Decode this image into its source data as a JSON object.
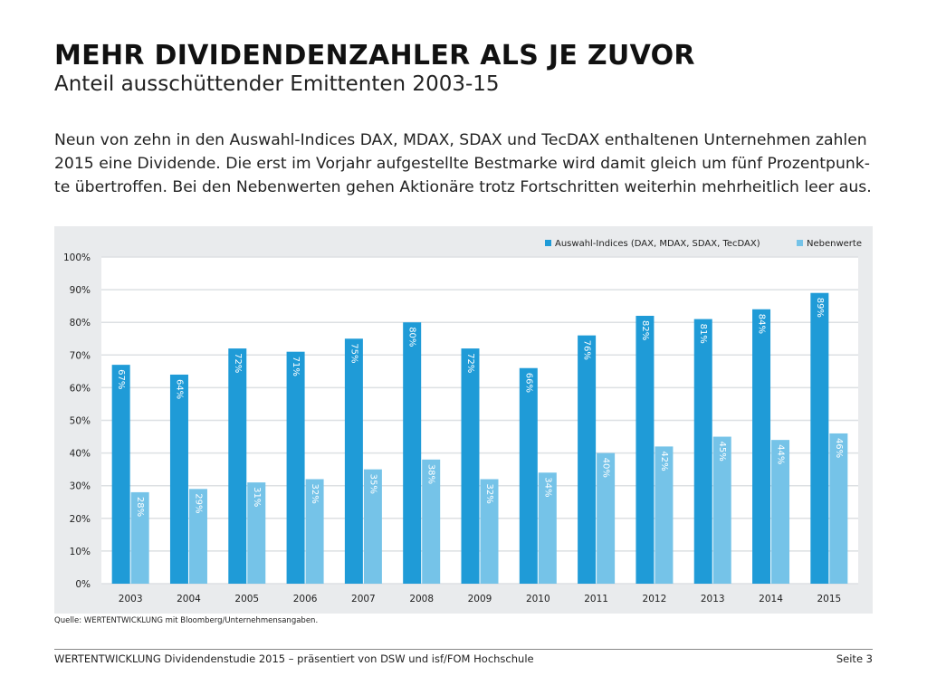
{
  "header": {
    "title": "MEHR DIVIDENDENZAHLER ALS JE ZUVOR",
    "subtitle": "Anteil ausschüttender Emittenten 2003-15"
  },
  "intro": "Neun von zehn in den Auswahl-Indices DAX, MDAX, SDAX und TecDAX enthaltenen Unternehmen zahlen 2015 eine Dividende. Die erst im Vorjahr aufgestellte Bestmarke wird damit gleich um fünf Prozentpunk-te übertroffen. Bei den Nebenwerten gehen Aktionäre trotz Fortschritten weiterhin mehrheitlich leer aus.",
  "chart_data": {
    "type": "bar",
    "title": "",
    "xlabel": "",
    "ylabel": "",
    "ylim": [
      0,
      100
    ],
    "yticks": [
      "0%",
      "10%",
      "20%",
      "30%",
      "40%",
      "50%",
      "60%",
      "70%",
      "80%",
      "90%",
      "100%"
    ],
    "categories": [
      "2003",
      "2004",
      "2005",
      "2006",
      "2007",
      "2008",
      "2009",
      "2010",
      "2011",
      "2012",
      "2013",
      "2014",
      "2015"
    ],
    "series": [
      {
        "name": "Auswahl-Indices (DAX, MDAX, SDAX, TecDAX)",
        "color": "#1f9bd7",
        "values": [
          67,
          64,
          72,
          71,
          75,
          80,
          72,
          66,
          76,
          82,
          81,
          84,
          89
        ]
      },
      {
        "name": "Nebenwerte",
        "color": "#75c3e8",
        "values": [
          28,
          29,
          31,
          32,
          35,
          38,
          32,
          34,
          40,
          42,
          45,
          44,
          46
        ]
      }
    ],
    "legend": "top-right",
    "grid": true
  },
  "source": "Quelle: WERTENTWICKLUNG mit Bloomberg/Unternehmensangaben.",
  "footer": {
    "text": "WERTENTWICKLUNG Dividendenstudie 2015 – präsentiert von DSW und isf/FOM Hochschule",
    "page": "Seite 3"
  }
}
